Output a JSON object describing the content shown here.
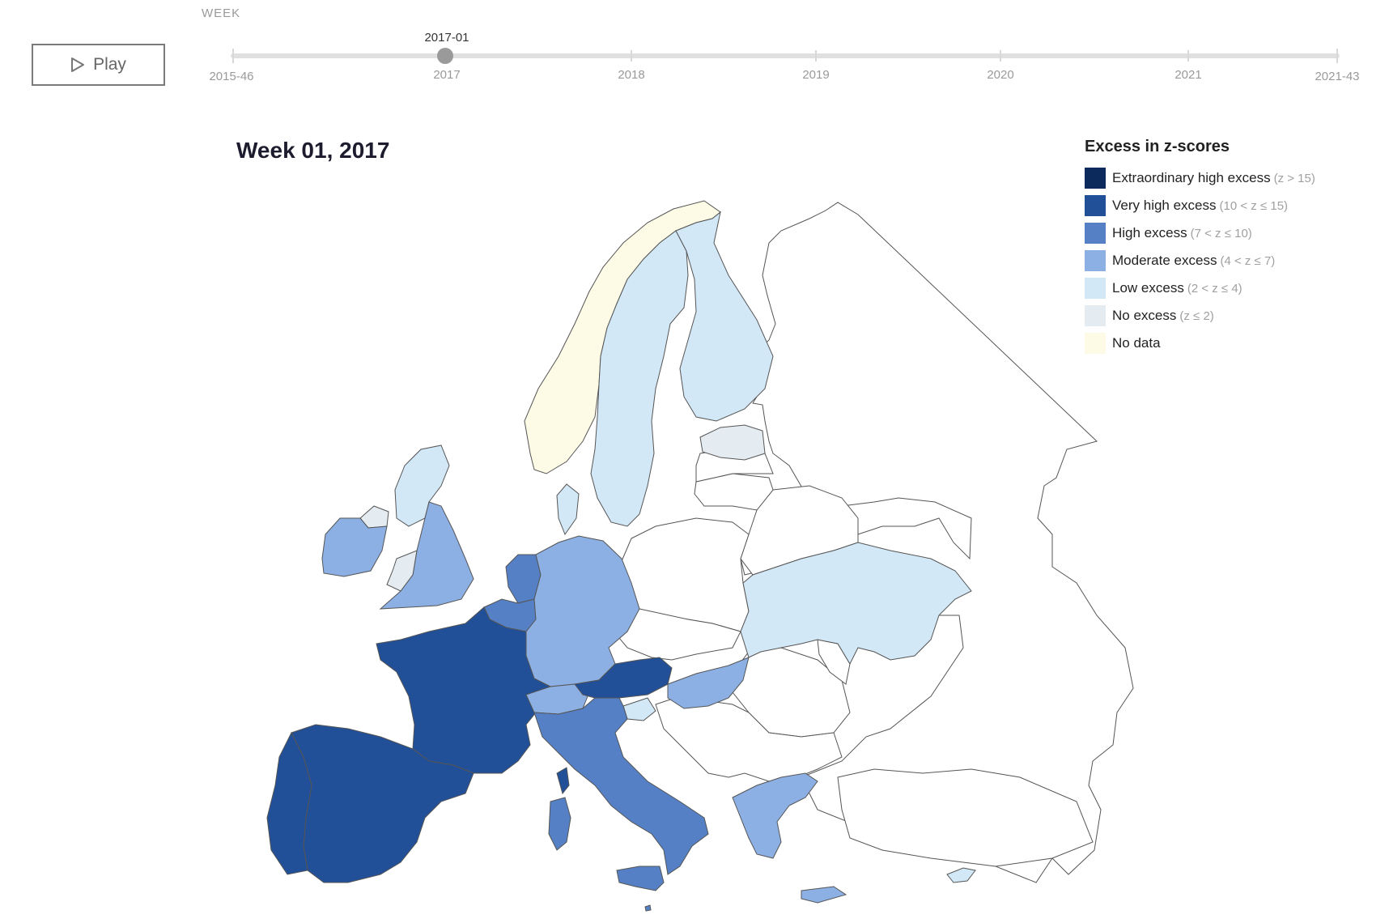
{
  "timeline": {
    "header": "WEEK",
    "start_label": "2015-46",
    "end_label": "2021-43",
    "year_ticks": [
      "2017",
      "2018",
      "2019",
      "2020",
      "2021"
    ],
    "current_value": "2017-01"
  },
  "controls": {
    "play_label": "Play",
    "play_icon": "play-icon"
  },
  "map": {
    "title": "Week 01, 2017",
    "regions": [
      {
        "name": "Norway",
        "category": "No data"
      },
      {
        "name": "Sweden",
        "category": "Low excess"
      },
      {
        "name": "Finland",
        "category": "Low excess"
      },
      {
        "name": "Estonia",
        "category": "No excess"
      },
      {
        "name": "Denmark",
        "category": "Low excess"
      },
      {
        "name": "Scotland",
        "category": "Low excess"
      },
      {
        "name": "Northern Ireland",
        "category": "No excess"
      },
      {
        "name": "Ireland",
        "category": "Moderate excess"
      },
      {
        "name": "England",
        "category": "Moderate excess"
      },
      {
        "name": "Wales",
        "category": "No excess"
      },
      {
        "name": "Netherlands",
        "category": "High excess"
      },
      {
        "name": "Belgium",
        "category": "High excess"
      },
      {
        "name": "Germany",
        "category": "Moderate excess"
      },
      {
        "name": "France",
        "category": "Very high excess"
      },
      {
        "name": "Spain",
        "category": "Very high excess"
      },
      {
        "name": "Portugal",
        "category": "Very high excess"
      },
      {
        "name": "Switzerland",
        "category": "Moderate excess"
      },
      {
        "name": "Austria",
        "category": "Very high excess"
      },
      {
        "name": "Slovenia",
        "category": "Low excess"
      },
      {
        "name": "Hungary",
        "category": "Moderate excess"
      },
      {
        "name": "Italy",
        "category": "High excess"
      },
      {
        "name": "Sardinia",
        "category": "High excess"
      },
      {
        "name": "Corsica",
        "category": "Very high excess"
      },
      {
        "name": "Sicily",
        "category": "High excess"
      },
      {
        "name": "Malta",
        "category": "High excess"
      },
      {
        "name": "Greece",
        "category": "Moderate excess"
      },
      {
        "name": "Ukraine",
        "category": "Low excess"
      },
      {
        "name": "Cyprus",
        "category": "Low excess"
      }
    ]
  },
  "legend": {
    "title": "Excess in z-scores",
    "items": [
      {
        "label": "Extraordinary high excess",
        "range": "(z > 15)",
        "color": "#0d2a5c"
      },
      {
        "label": "Very high excess",
        "range": "(10 < z ≤ 15)",
        "color": "#214f98"
      },
      {
        "label": "High excess",
        "range": "(7 < z ≤ 10)",
        "color": "#5580c5"
      },
      {
        "label": "Moderate excess",
        "range": "(4 < z ≤ 7)",
        "color": "#8db0e4"
      },
      {
        "label": "Low excess",
        "range": "(2 < z ≤ 4)",
        "color": "#d3e8f7"
      },
      {
        "label": "No excess",
        "range": "(z ≤ 2)",
        "color": "#e4ecf2"
      },
      {
        "label": "No data",
        "range": "",
        "color": "#fdfbe6"
      }
    ]
  }
}
